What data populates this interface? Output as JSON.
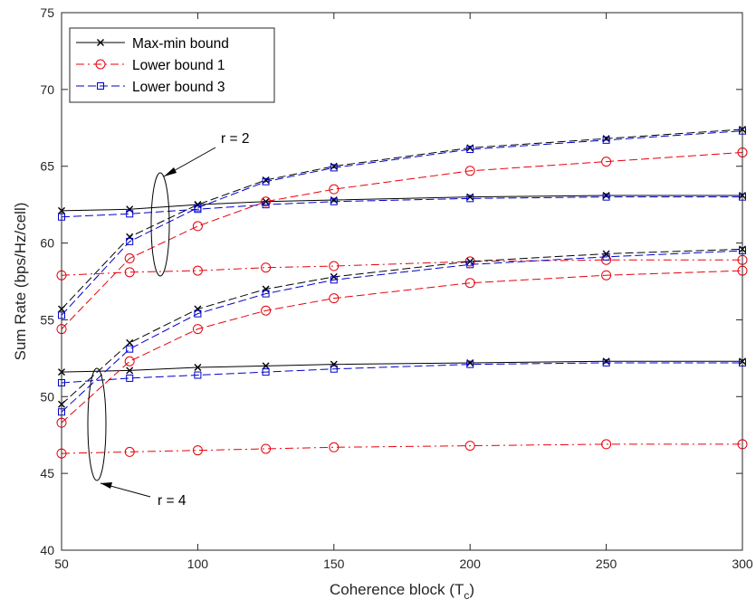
{
  "chart_data": {
    "type": "line",
    "xlabel_main": "Coherence block (T",
    "xlabel_sub": "c",
    "xlabel_end": ")",
    "ylabel": "Sum Rate (bps/Hz/cell)",
    "xlim": [
      50,
      300
    ],
    "ylim": [
      40,
      75
    ],
    "xticks": [
      50,
      100,
      150,
      200,
      250,
      300
    ],
    "yticks": [
      40,
      45,
      50,
      55,
      60,
      65,
      70,
      75
    ],
    "xtick_labels": [
      "50",
      "100",
      "150",
      "200",
      "250",
      "300"
    ],
    "ytick_labels": [
      "40",
      "45",
      "50",
      "55",
      "60",
      "65",
      "70",
      "75"
    ],
    "grid": false,
    "legend_position": "top-left",
    "legend": [
      {
        "label": "Max-min bound",
        "color": "#000000",
        "marker": "x",
        "dash": "solid"
      },
      {
        "label": "Lower bound 1",
        "color": "#e8000b",
        "marker": "circle",
        "dash": "dashdot"
      },
      {
        "label": "Lower bound 3",
        "color": "#0000cc",
        "marker": "square",
        "dash": "dashed"
      }
    ],
    "annotations": [
      {
        "text": "r = 2"
      },
      {
        "text": "r = 4"
      }
    ],
    "x": [
      50,
      75,
      100,
      125,
      150,
      200,
      250,
      300
    ],
    "series": [
      {
        "group": "r=2",
        "kind": "Max-min bound",
        "color": "#000000",
        "marker": "x",
        "dash": "solid",
        "values": [
          62.1,
          62.2,
          62.5,
          62.7,
          62.8,
          63.0,
          63.1,
          63.1
        ]
      },
      {
        "group": "r=2",
        "kind": "Max-min bound",
        "color": "#000000",
        "marker": "x",
        "dash": "dashed",
        "values": [
          55.7,
          60.4,
          62.5,
          64.1,
          65.0,
          66.2,
          66.8,
          67.4
        ]
      },
      {
        "group": "r=2",
        "kind": "Lower bound 1",
        "color": "#e8000b",
        "marker": "circle",
        "dash": "dashdot",
        "values": [
          57.9,
          58.1,
          58.2,
          58.4,
          58.5,
          58.8,
          58.9,
          58.9
        ]
      },
      {
        "group": "r=2",
        "kind": "Lower bound 1",
        "color": "#e8000b",
        "marker": "circle",
        "dash": "dashed",
        "values": [
          54.4,
          59.0,
          61.1,
          62.7,
          63.5,
          64.7,
          65.3,
          65.9
        ]
      },
      {
        "group": "r=2",
        "kind": "Lower bound 3",
        "color": "#0000cc",
        "marker": "square",
        "dash": "dashed",
        "values": [
          61.7,
          61.9,
          62.2,
          62.5,
          62.7,
          62.9,
          63.0,
          63.0
        ]
      },
      {
        "group": "r=2",
        "kind": "Lower bound 3",
        "color": "#0000cc",
        "marker": "square",
        "dash": "dashed",
        "values": [
          55.3,
          60.1,
          62.3,
          64.0,
          64.9,
          66.1,
          66.7,
          67.3
        ]
      },
      {
        "group": "r=4",
        "kind": "Max-min bound",
        "color": "#000000",
        "marker": "x",
        "dash": "solid",
        "values": [
          51.6,
          51.7,
          51.9,
          52.0,
          52.1,
          52.2,
          52.3,
          52.3
        ]
      },
      {
        "group": "r=4",
        "kind": "Max-min bound",
        "color": "#000000",
        "marker": "x",
        "dash": "dashed",
        "values": [
          49.5,
          53.5,
          55.7,
          57.0,
          57.8,
          58.8,
          59.3,
          59.6
        ]
      },
      {
        "group": "r=4",
        "kind": "Lower bound 1",
        "color": "#e8000b",
        "marker": "circle",
        "dash": "dashdot",
        "values": [
          46.3,
          46.4,
          46.5,
          46.6,
          46.7,
          46.8,
          46.9,
          46.9
        ]
      },
      {
        "group": "r=4",
        "kind": "Lower bound 1",
        "color": "#e8000b",
        "marker": "circle",
        "dash": "dashed",
        "values": [
          48.3,
          52.3,
          54.4,
          55.6,
          56.4,
          57.4,
          57.9,
          58.2
        ]
      },
      {
        "group": "r=4",
        "kind": "Lower bound 3",
        "color": "#0000cc",
        "marker": "square",
        "dash": "dashed",
        "values": [
          50.9,
          51.2,
          51.4,
          51.6,
          51.8,
          52.1,
          52.2,
          52.2
        ]
      },
      {
        "group": "r=4",
        "kind": "Lower bound 3",
        "color": "#0000cc",
        "marker": "square",
        "dash": "dashed",
        "values": [
          49.0,
          53.1,
          55.4,
          56.7,
          57.6,
          58.6,
          59.1,
          59.5
        ]
      }
    ]
  }
}
